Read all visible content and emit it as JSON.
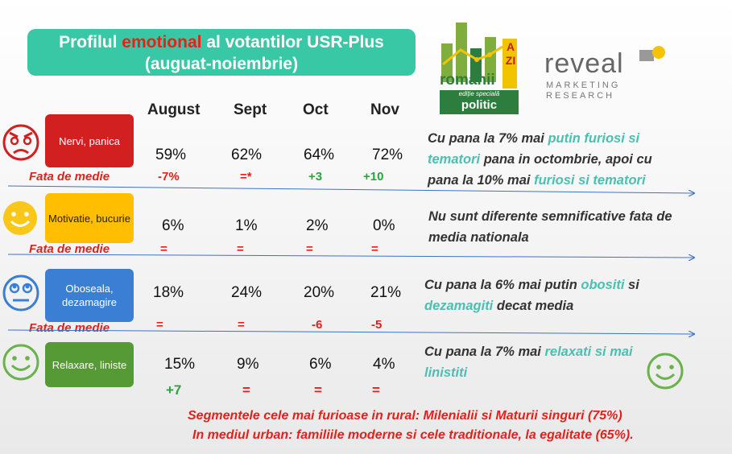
{
  "title": {
    "prefix": "Profilul ",
    "highlight": "emotional",
    "suffix": " al votantilor USR-Plus",
    "line2": "(auguat-noiembrie)"
  },
  "logo_romanii": {
    "azi": "AZI",
    "main": "românii",
    "sub1": "ediție specială",
    "sub2": "politic"
  },
  "logo_reveal": {
    "name": "reveal",
    "line1": "MARKETING",
    "line2": "RESEARCH"
  },
  "columns": [
    "August",
    "Sept",
    "Oct",
    "Nov"
  ],
  "fata_label": "Fata de medie",
  "rows": [
    {
      "label": "Nervi, panica",
      "values": [
        "59%",
        "62%",
        "64%",
        "72%"
      ],
      "diffs": [
        "-7%",
        "=*",
        "+3",
        "+10"
      ],
      "note_parts": [
        "Cu pana la 7% mai ",
        "putin furiosi si tematori",
        " pana in octombrie, apoi cu pana la 10% mai ",
        "furiosi si tematori"
      ]
    },
    {
      "label": "Motivatie, bucurie",
      "values": [
        "6%",
        "1%",
        "2%",
        "0%"
      ],
      "diffs": [
        "=",
        "=",
        "=",
        "="
      ],
      "note_parts": [
        "Nu sunt diferente semnificative fata de media nationala"
      ]
    },
    {
      "label": "Oboseala, dezamagire",
      "values": [
        "18%",
        "24%",
        "20%",
        "21%"
      ],
      "diffs": [
        "=",
        "=",
        "-6",
        "-5"
      ],
      "note_parts": [
        "Cu pana la 6% mai putin ",
        "obositi",
        " si ",
        "dezamagiti",
        " decat media"
      ]
    },
    {
      "label": "Relaxare, liniste",
      "values": [
        "15%",
        "9%",
        "6%",
        "4%"
      ],
      "diffs": [
        "+7",
        "=",
        "=",
        "="
      ],
      "note_parts": [
        "Cu pana la 7% mai ",
        "relaxati si mai linistiti"
      ]
    }
  ],
  "footer": {
    "line1": "Segmentele cele mai furioase in rural: Milenialii si Maturii singuri (75%)",
    "line2": "In mediul urban: familiile moderne si cele traditionale, la egalitate (65%)."
  },
  "colors": {
    "title_bg": "#39c8a6",
    "highlight": "#e8201a",
    "row1": "#d21f1f",
    "row2": "#ffbf00",
    "row3": "#3b7fd4",
    "row4": "#559a35"
  }
}
